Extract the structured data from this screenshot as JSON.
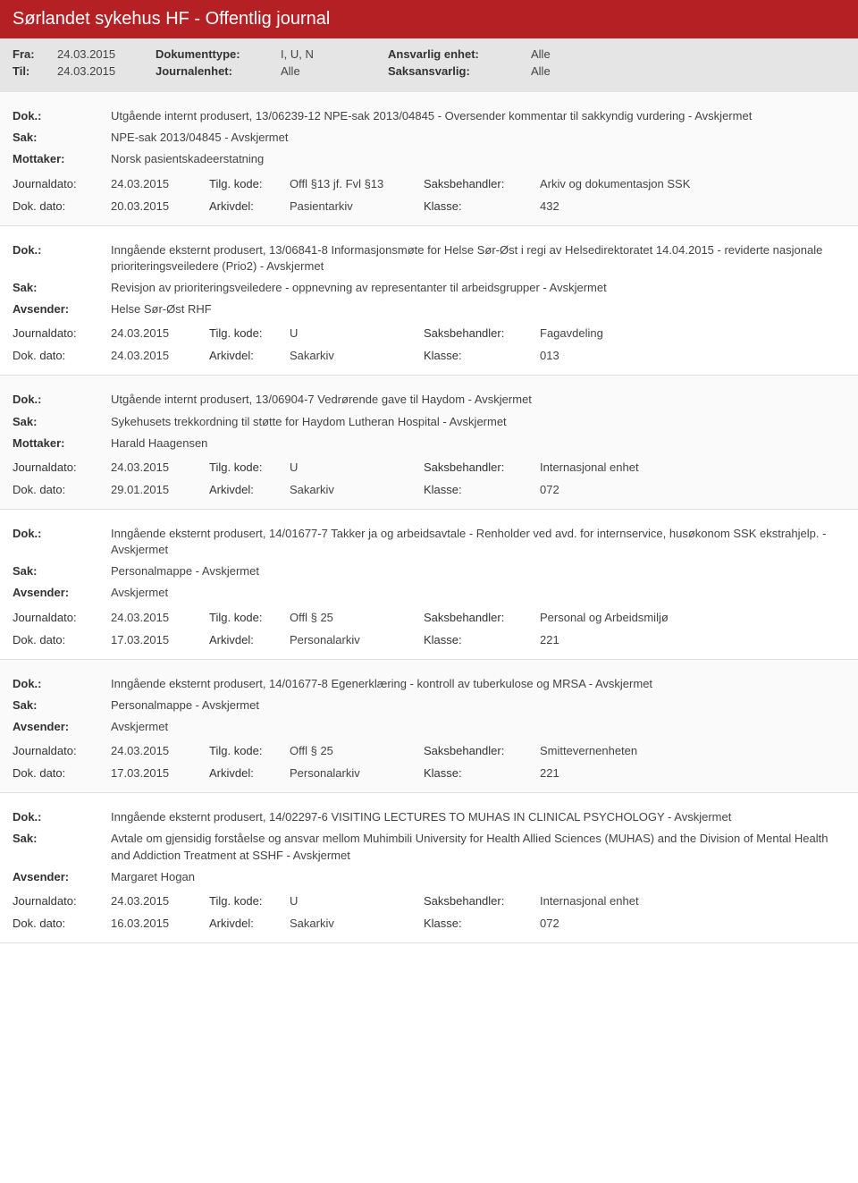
{
  "header": {
    "title": "Sørlandet sykehus HF - Offentlig journal"
  },
  "filter": {
    "fra_label": "Fra:",
    "fra_value": "24.03.2015",
    "til_label": "Til:",
    "til_value": "24.03.2015",
    "doktype_label": "Dokumenttype:",
    "doktype_value": "I, U, N",
    "journalenhet_label": "Journalenhet:",
    "journalenhet_value": "Alle",
    "ansvarlig_enhet_label": "Ansvarlig enhet:",
    "ansvarlig_enhet_value": "Alle",
    "saksansvarlig_label": "Saksansvarlig:",
    "saksansvarlig_value": "Alle"
  },
  "labels": {
    "dok": "Dok.:",
    "sak": "Sak:",
    "mottaker": "Mottaker:",
    "avsender": "Avsender:",
    "journaldato": "Journaldato:",
    "dokdato": "Dok. dato:",
    "tilgkode": "Tilg. kode:",
    "arkivdel": "Arkivdel:",
    "saksbehandler": "Saksbehandler:",
    "klasse": "Klasse:"
  },
  "entries": [
    {
      "dok": "Utgående internt produsert, 13/06239-12 NPE-sak 2013/04845 - Oversender kommentar til sakkyndig vurdering - Avskjermet",
      "sak": "NPE-sak 2013/04845 - Avskjermet",
      "party_label": "Mottaker:",
      "party_value": "Norsk pasientskadeerstatning",
      "journaldato": "24.03.2015",
      "tilgkode": "Offl §13 jf. Fvl §13",
      "saksbehandler": "Arkiv og dokumentasjon SSK",
      "dokdato": "20.03.2015",
      "arkivdel": "Pasientarkiv",
      "klasse": "432"
    },
    {
      "dok": "Inngående eksternt produsert, 13/06841-8 Informasjonsmøte for Helse Sør-Øst i regi av Helsedirektoratet 14.04.2015 - reviderte nasjonale prioriteringsveiledere (Prio2) - Avskjermet",
      "sak": "Revisjon av prioriteringsveiledere - oppnevning av representanter til arbeidsgrupper - Avskjermet",
      "party_label": "Avsender:",
      "party_value": "Helse Sør-Øst RHF",
      "journaldato": "24.03.2015",
      "tilgkode": "U",
      "saksbehandler": "Fagavdeling",
      "dokdato": "24.03.2015",
      "arkivdel": "Sakarkiv",
      "klasse": "013"
    },
    {
      "dok": "Utgående internt produsert, 13/06904-7 Vedrørende gave til Haydom - Avskjermet",
      "sak": "Sykehusets trekkordning til støtte for Haydom Lutheran Hospital - Avskjermet",
      "party_label": "Mottaker:",
      "party_value": "Harald Haagensen",
      "journaldato": "24.03.2015",
      "tilgkode": "U",
      "saksbehandler": "Internasjonal enhet",
      "dokdato": "29.01.2015",
      "arkivdel": "Sakarkiv",
      "klasse": "072"
    },
    {
      "dok": "Inngående eksternt produsert, 14/01677-7 Takker ja og arbeidsavtale - Renholder ved avd. for internservice, husøkonom SSK ekstrahjelp. - Avskjermet",
      "sak": "Personalmappe - Avskjermet",
      "party_label": "Avsender:",
      "party_value": "Avskjermet",
      "journaldato": "24.03.2015",
      "tilgkode": "Offl § 25",
      "saksbehandler": "Personal og Arbeidsmiljø",
      "dokdato": "17.03.2015",
      "arkivdel": "Personalarkiv",
      "klasse": "221"
    },
    {
      "dok": "Inngående eksternt produsert, 14/01677-8 Egenerklæring - kontroll av tuberkulose og MRSA - Avskjermet",
      "sak": "Personalmappe - Avskjermet",
      "party_label": "Avsender:",
      "party_value": "Avskjermet",
      "journaldato": "24.03.2015",
      "tilgkode": "Offl § 25",
      "saksbehandler": "Smittevernenheten",
      "dokdato": "17.03.2015",
      "arkivdel": "Personalarkiv",
      "klasse": "221"
    },
    {
      "dok": "Inngående eksternt produsert, 14/02297-6 VISITING LECTURES TO MUHAS IN CLINICAL PSYCHOLOGY - Avskjermet",
      "sak": "Avtale om gjensidig forståelse og ansvar mellom Muhimbili University for Health Allied Sciences (MUHAS) and the Division of Mental Health and Addiction Treatment at SSHF - Avskjermet",
      "party_label": "Avsender:",
      "party_value": "Margaret Hogan",
      "journaldato": "24.03.2015",
      "tilgkode": "U",
      "saksbehandler": "Internasjonal enhet",
      "dokdato": "16.03.2015",
      "arkivdel": "Sakarkiv",
      "klasse": "072"
    }
  ]
}
